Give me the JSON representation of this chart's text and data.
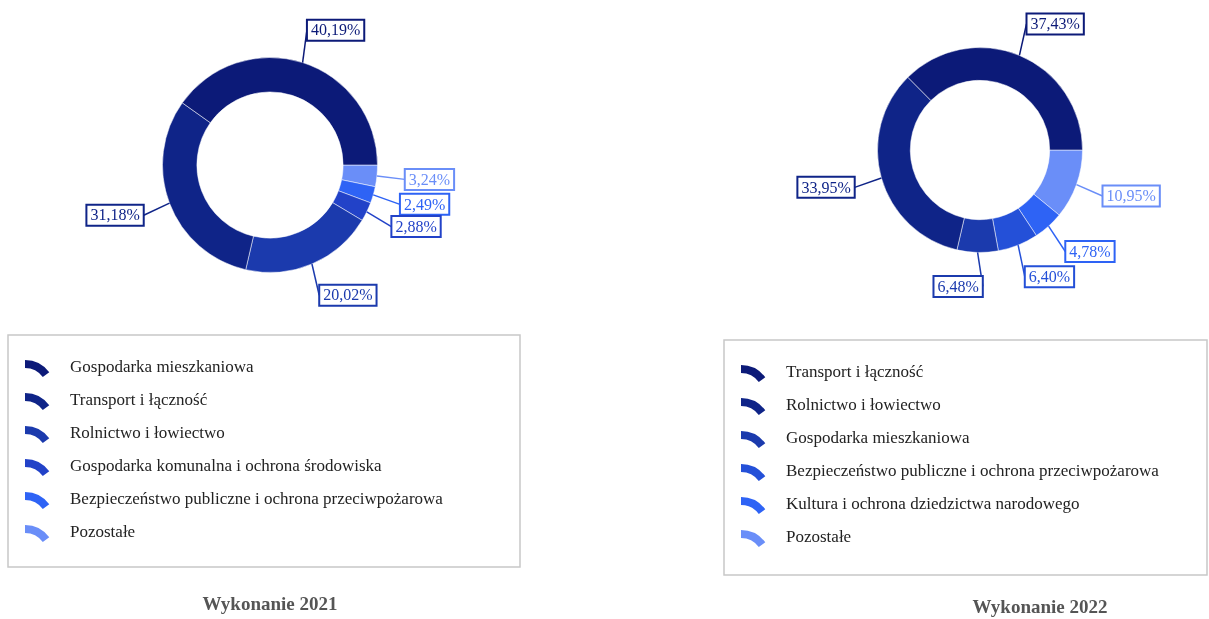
{
  "chart_data": [
    {
      "type": "donut",
      "title": "Wykonanie 2021",
      "legend": "bottom",
      "categories": [
        "Gospodarka mieszkaniowa",
        "Transport i łączność",
        "Rolnictwo i łowiectwo",
        "Gospodarka komunalna i ochrona środowiska",
        "Bezpieczeństwo publiczne i ochrona przeciwpożarowa",
        "Pozostałe"
      ],
      "values": [
        40.19,
        31.18,
        20.02,
        2.88,
        2.49,
        3.24
      ],
      "value_labels": [
        "40,19%",
        "31,18%",
        "20,02%",
        "2,88%",
        "2,49%",
        "3,24%"
      ],
      "colors": [
        "#0c1a78",
        "#0f2488",
        "#1b3aad",
        "#2242c8",
        "#2e63f5",
        "#6a8ef8"
      ]
    },
    {
      "type": "donut",
      "title": "Wykonanie 2022",
      "legend": "bottom",
      "categories": [
        "Transport i łączność",
        "Rolnictwo i łowiectwo",
        "Gospodarka mieszkaniowa",
        "Bezpieczeństwo publiczne i ochrona przeciwpożarowa",
        "Kultura i ochrona dziedzictwa narodowego",
        "Pozostałe"
      ],
      "values": [
        37.43,
        33.95,
        6.48,
        6.4,
        4.78,
        10.95
      ],
      "value_labels": [
        "37,43%",
        "33,95%",
        "6,48%",
        "6,40%",
        "4,78%",
        "10,95%"
      ],
      "colors": [
        "#0c1a78",
        "#0f2488",
        "#1b3aad",
        "#2450d8",
        "#2e63f5",
        "#6a8ef8"
      ]
    }
  ]
}
